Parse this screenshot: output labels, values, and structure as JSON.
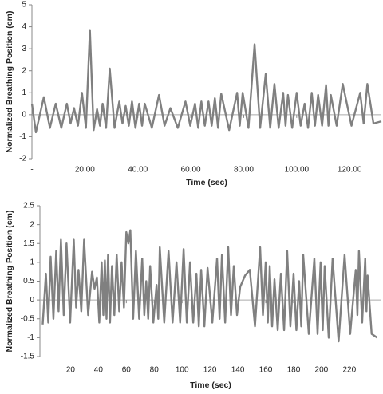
{
  "chart_data": [
    {
      "type": "line",
      "x_label": "Time (sec)",
      "y_label": "Normalized Breathing Position (cm)",
      "color": "#808080",
      "xlim": [
        0,
        132
      ],
      "ylim": [
        -2,
        5
      ],
      "xticks": [
        {
          "value": 0,
          "label": "-"
        },
        {
          "value": 20,
          "label": "20.00"
        },
        {
          "value": 40,
          "label": "40.00"
        },
        {
          "value": 60,
          "label": "60.00"
        },
        {
          "value": 80,
          "label": "80.00"
        },
        {
          "value": 100,
          "label": "100.00"
        },
        {
          "value": 120,
          "label": "120.00"
        }
      ],
      "yticks": [
        -2,
        -1,
        0,
        1,
        2,
        3,
        4,
        5
      ],
      "x": [
        0,
        1.5,
        4.5,
        6.8,
        9.0,
        11.1,
        13.2,
        14.6,
        15.9,
        17.4,
        18.9,
        20.4,
        21.9,
        23.3,
        24.6,
        25.7,
        26.7,
        28.0,
        29.4,
        31.2,
        33.0,
        34.2,
        35.4,
        36.6,
        37.8,
        39.1,
        40.5,
        41.6,
        42.6,
        45.3,
        48.0,
        50.1,
        52.3,
        55.1,
        58.0,
        59.8,
        61.6,
        62.8,
        64.0,
        65.3,
        66.7,
        67.9,
        69.1,
        70.3,
        71.5,
        74.5,
        77.5,
        78.5,
        79.6,
        81.8,
        84.1,
        86.2,
        88.3,
        90.0,
        91.6,
        93.2,
        94.9,
        95.8,
        96.7,
        98.3,
        100.0,
        101.5,
        103.0,
        104.3,
        105.7,
        106.9,
        108.1,
        109.6,
        111.1,
        112.0,
        112.9,
        115.1,
        117.4,
        120.7,
        124.0,
        125.3,
        126.7,
        129.0,
        132
      ],
      "values": [
        0.5,
        -0.8,
        0.8,
        -0.6,
        0.5,
        -0.6,
        0.5,
        -0.4,
        0.3,
        -0.5,
        1.0,
        -0.6,
        3.85,
        -0.7,
        0.25,
        -0.5,
        0.5,
        -0.6,
        2.1,
        -0.6,
        0.6,
        -0.4,
        0.4,
        -0.5,
        0.6,
        -0.6,
        0.5,
        -0.5,
        0.5,
        -0.6,
        0.9,
        -0.5,
        0.3,
        -0.6,
        0.6,
        -0.5,
        0.5,
        -0.6,
        0.6,
        -0.5,
        0.6,
        -0.5,
        0.75,
        -0.6,
        0.95,
        -0.7,
        1.0,
        -0.5,
        1.0,
        -0.6,
        3.2,
        -0.6,
        1.85,
        -0.6,
        1.4,
        -0.6,
        1.0,
        -0.5,
        0.9,
        -0.6,
        1.0,
        -0.5,
        0.5,
        -0.6,
        1.0,
        -0.5,
        0.9,
        -0.5,
        1.35,
        -0.5,
        0.9,
        -0.5,
        1.4,
        -0.5,
        1.0,
        -0.4,
        1.4,
        -0.4,
        -0.3
      ]
    },
    {
      "type": "line",
      "x_label": "Time (sec)",
      "y_label": "Normalized Breathing Position (cm)",
      "color": "#808080",
      "xlim": [
        -2,
        243
      ],
      "ylim": [
        -1.5,
        2.5
      ],
      "xticks": [
        20,
        40,
        60,
        80,
        100,
        120,
        140,
        160,
        180,
        200,
        220
      ],
      "yticks": [
        -1.5,
        -1,
        -0.5,
        0,
        0.5,
        1,
        1.5,
        2,
        2.5
      ],
      "x": [
        0,
        2.3,
        4.0,
        5.7,
        7.7,
        9.7,
        11.4,
        13.1,
        15.1,
        17.1,
        19.7,
        22.3,
        24.0,
        25.7,
        27.7,
        29.7,
        32.6,
        35.4,
        37.2,
        38.9,
        40.6,
        42.3,
        43.5,
        44.6,
        45.8,
        46.9,
        48.3,
        49.7,
        51.4,
        53.1,
        54.9,
        56.6,
        58.3,
        60,
        61.5,
        62.9,
        64.9,
        66.9,
        69.2,
        71.4,
        72.9,
        74.3,
        75.7,
        77.1,
        79.4,
        81.7,
        82.9,
        84,
        87.2,
        90.3,
        93.2,
        96,
        98.6,
        101.1,
        103.4,
        105.7,
        108.0,
        110.3,
        112.0,
        113.7,
        116.0,
        118.3,
        121.7,
        125.1,
        126.9,
        128.6,
        130.9,
        133.1,
        135.1,
        137.1,
        139.4,
        141.7,
        145.2,
        148.6,
        152.3,
        156,
        158.0,
        160,
        161.5,
        162.9,
        164.6,
        166.3,
        168.6,
        170.9,
        173.2,
        175.4,
        177.7,
        180,
        182.0,
        184,
        185.5,
        186.9,
        190.9,
        194.9,
        197.2,
        199.4,
        200.9,
        202.3,
        205.2,
        208,
        212.3,
        216.6,
        220.6,
        224.6,
        225.8,
        226.9,
        229.2,
        231.4,
        232.3,
        233.1,
        236,
        240
      ],
      "values": [
        -0.65,
        0.7,
        -0.6,
        1.15,
        -0.5,
        1.3,
        -0.3,
        1.6,
        -0.4,
        1.5,
        -0.6,
        1.6,
        -0.2,
        0.8,
        -0.3,
        1.6,
        -0.4,
        0.75,
        0.3,
        0.6,
        -0.6,
        1.0,
        -0.4,
        1.05,
        -0.5,
        1.2,
        -0.6,
        0.9,
        -0.4,
        1.2,
        -0.3,
        1.0,
        -0.2,
        1.8,
        1.5,
        1.85,
        -0.5,
        1.3,
        -0.5,
        1.1,
        -0.4,
        0.5,
        -0.5,
        0.9,
        -0.6,
        0.4,
        -0.5,
        1.4,
        -0.6,
        1.3,
        -0.6,
        1.0,
        -0.6,
        1.35,
        -0.6,
        1.0,
        -0.6,
        0.7,
        -0.7,
        0.8,
        -0.7,
        0.85,
        -0.6,
        1.1,
        -0.5,
        1.2,
        -0.6,
        1.4,
        -0.4,
        0.9,
        -0.4,
        0.35,
        0.65,
        0.8,
        -0.7,
        1.4,
        -0.4,
        1.0,
        -0.6,
        0.9,
        -0.7,
        0.55,
        -0.8,
        0.7,
        -0.8,
        1.3,
        -0.7,
        0.7,
        -0.8,
        0.5,
        -0.7,
        1.2,
        -0.9,
        1.1,
        -0.9,
        1.0,
        -0.8,
        0.9,
        -1.0,
        1.1,
        -1.1,
        1.2,
        -0.9,
        0.8,
        -0.4,
        1.3,
        -0.6,
        1.1,
        -0.3,
        0.65,
        -0.9,
        -1.0
      ]
    }
  ]
}
